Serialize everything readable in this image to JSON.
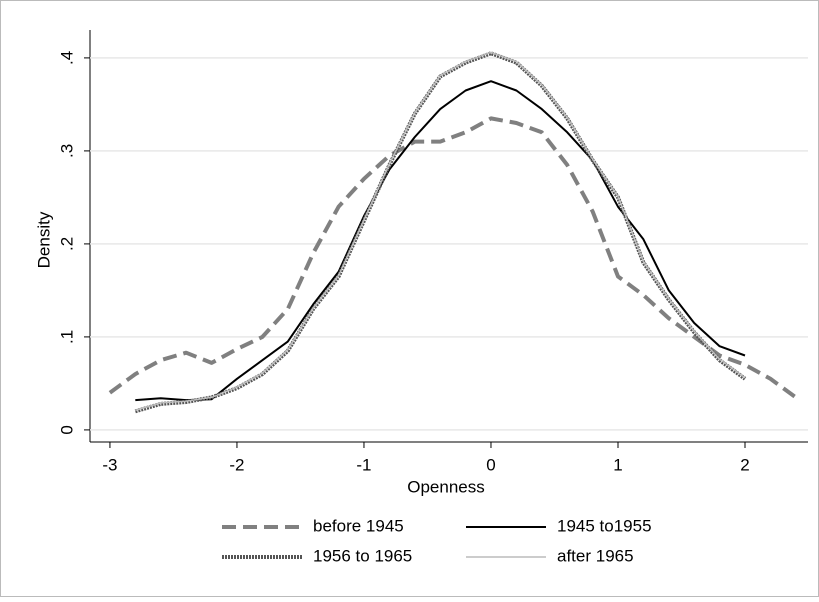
{
  "chart_data": {
    "type": "line",
    "x_label": "Openness",
    "y_label": "Density",
    "x": [
      -3.0,
      -2.8,
      -2.6,
      -2.4,
      -2.2,
      -2.0,
      -1.8,
      -1.6,
      -1.4,
      -1.2,
      -1.0,
      -0.8,
      -0.6,
      -0.4,
      -0.2,
      0.0,
      0.2,
      0.4,
      0.6,
      0.8,
      1.0,
      1.2,
      1.4,
      1.6,
      1.8,
      2.0,
      2.2,
      2.4
    ],
    "xlim": [
      -3.157,
      2.496
    ],
    "xticks": [
      -3,
      -2,
      -1,
      0,
      1,
      2
    ],
    "ylim": [
      -0.013,
      0.43
    ],
    "yticks": [
      0,
      {
        "value": 0.1,
        "label": ".1"
      },
      {
        "value": 0.2,
        "label": ".2"
      },
      {
        "value": 0.3,
        "label": ".3"
      },
      {
        "value": 0.4,
        "label": ".4"
      }
    ],
    "grid": true,
    "legend": "bottom",
    "series": [
      {
        "name": "before 1945",
        "color": "#808080",
        "style": "dashed",
        "values": [
          0.04,
          0.06,
          0.075,
          0.083,
          0.072,
          0.087,
          0.1,
          0.13,
          0.19,
          0.24,
          0.27,
          0.295,
          0.31,
          0.31,
          0.32,
          0.335,
          0.33,
          0.32,
          0.285,
          0.235,
          0.165,
          0.145,
          0.12,
          0.1,
          0.08,
          0.07,
          0.055,
          0.035
        ]
      },
      {
        "name": "1945 to1955",
        "color": "#000000",
        "style": "solid",
        "values": [
          null,
          0.032,
          0.034,
          0.032,
          0.033,
          0.055,
          0.075,
          0.095,
          0.135,
          0.17,
          0.23,
          0.28,
          0.315,
          0.345,
          0.365,
          0.375,
          0.365,
          0.345,
          0.32,
          0.29,
          0.24,
          0.205,
          0.15,
          0.115,
          0.09,
          0.08,
          null,
          null
        ]
      },
      {
        "name": "1956 to 1965",
        "color": "#555555",
        "style": "dotted",
        "values": [
          null,
          0.02,
          0.028,
          0.03,
          0.035,
          0.045,
          0.06,
          0.085,
          0.13,
          0.165,
          0.225,
          0.285,
          0.34,
          0.38,
          0.395,
          0.405,
          0.395,
          0.37,
          0.335,
          0.29,
          0.25,
          0.18,
          0.14,
          0.105,
          0.075,
          0.055,
          null,
          null
        ]
      },
      {
        "name": "after 1965",
        "color": "#bbbbbb",
        "style": "thin",
        "values": [
          null,
          0.021,
          0.029,
          0.031,
          0.035,
          0.046,
          0.061,
          0.086,
          0.131,
          0.166,
          0.226,
          0.286,
          0.341,
          0.381,
          0.396,
          0.406,
          0.396,
          0.371,
          0.336,
          0.291,
          0.251,
          0.181,
          0.141,
          0.106,
          0.076,
          0.056,
          null,
          null
        ]
      }
    ]
  }
}
